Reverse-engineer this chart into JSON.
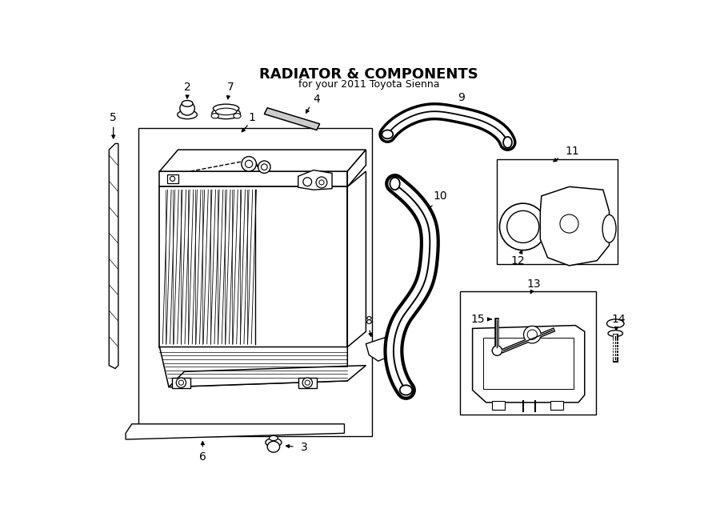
{
  "title": "RADIATOR & COMPONENTS",
  "subtitle": "for your 2011 Toyota Sienna",
  "bg_color": "#ffffff",
  "lc": "#000000",
  "fig_width": 9.0,
  "fig_height": 6.61,
  "dpi": 100
}
